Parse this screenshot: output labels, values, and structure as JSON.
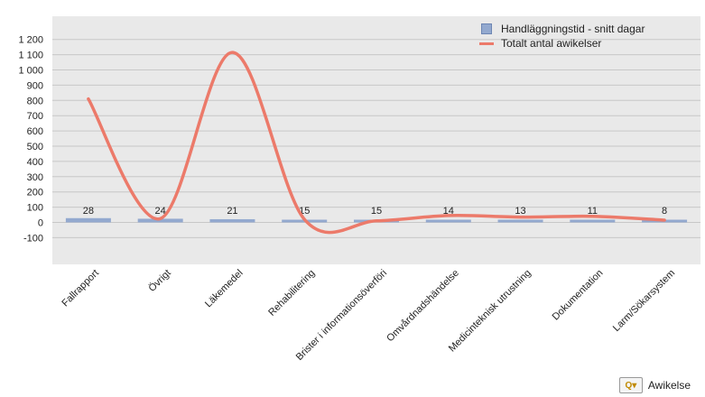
{
  "chart_data": {
    "type": "bar",
    "categories": [
      "Fallrapport",
      "Övrigt",
      "Läkemedel",
      "Rehabilitering",
      "Brister i informationsöverföring",
      "Omvårdnadshändelse",
      "Medicinteknisk utrustning",
      "Dokumentation",
      "Larm/Sökarsystem"
    ],
    "category_labels_shown": [
      "Fallrapport",
      "Övrigt",
      "Läkemedel",
      "Rehabilitering",
      "Brister i informationsöverföri",
      "Omvårdnadshändelse",
      "Medicinteknisk utrustning",
      "Dokumentation",
      "Larm/Sökarsystem"
    ],
    "series": [
      {
        "name": "Handläggningstid - snitt dagar",
        "type": "bar",
        "values": [
          28,
          24,
          21,
          15,
          15,
          14,
          13,
          11,
          8
        ],
        "color": "#93a9cf"
      },
      {
        "name": "Totalt antal awikelser",
        "type": "line",
        "smooth": true,
        "values": [
          810,
          25,
          1115,
          20,
          10,
          45,
          35,
          40,
          15
        ],
        "color": "#ec7a6a"
      }
    ],
    "y_ticks": [
      "1 200",
      "1 100",
      "1 000",
      "900",
      "800",
      "700",
      "600",
      "500",
      "400",
      "300",
      "200",
      "100",
      "0",
      "-100"
    ],
    "ylim": [
      -200,
      1300
    ],
    "grid": true,
    "legend_position": "top-right"
  },
  "footer": {
    "label": "Awikelse",
    "icon": "chart-options-icon"
  }
}
